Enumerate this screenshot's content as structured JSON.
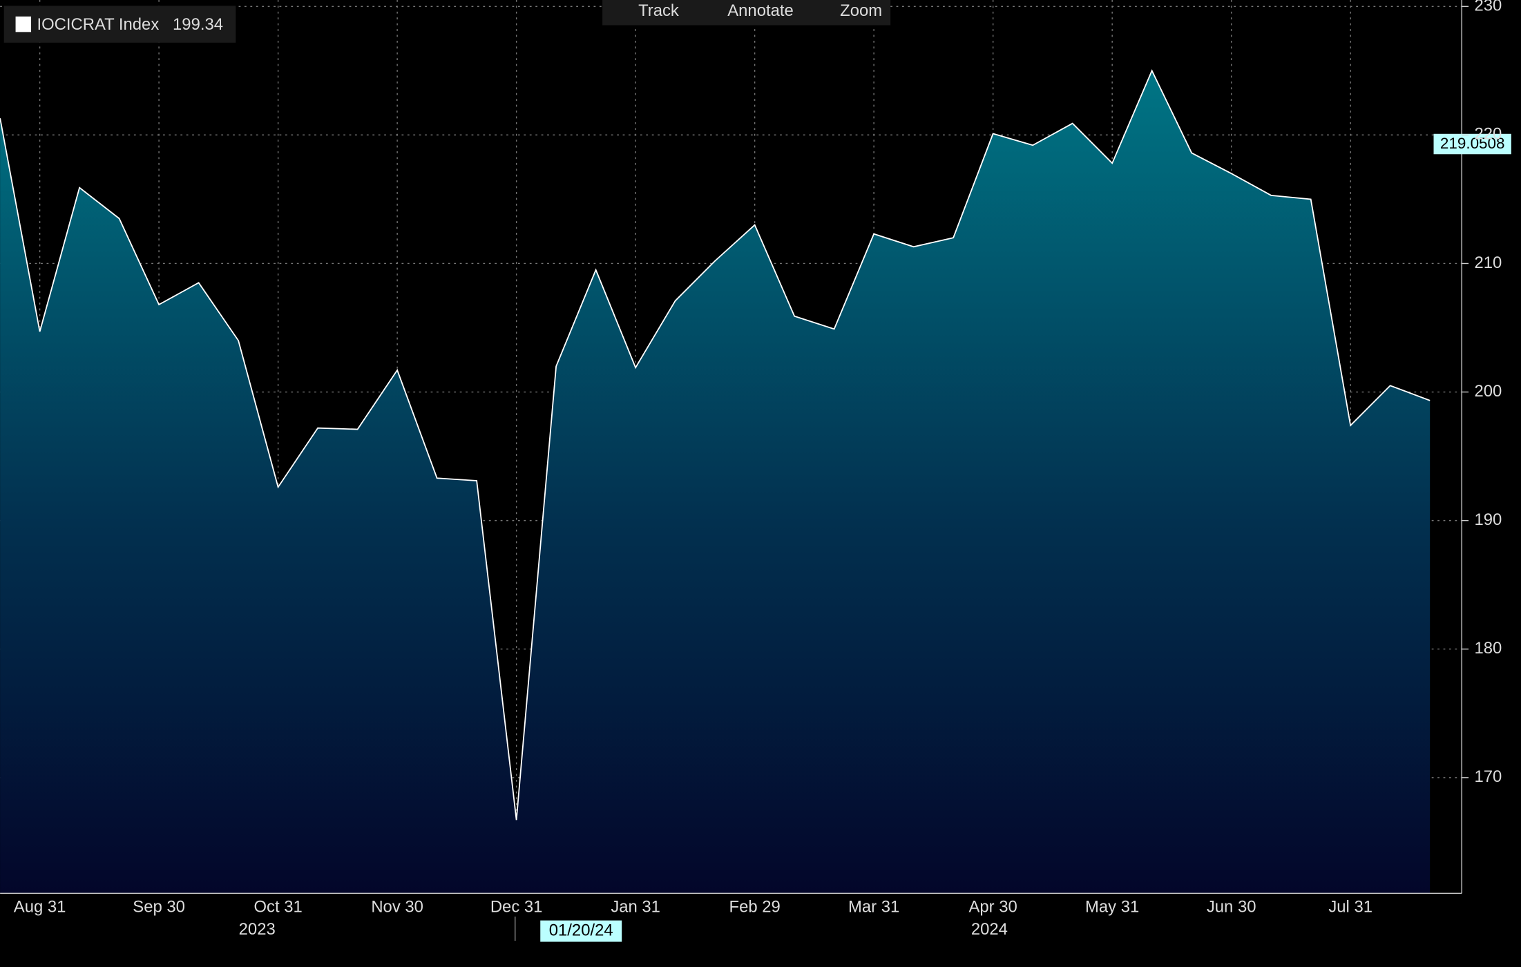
{
  "toolbar": [
    "Track",
    "Annotate",
    "Zoom"
  ],
  "chart_data": {
    "type": "area",
    "legend_name": "IOCICRAT Index",
    "last_value": 199.34,
    "crosshair_value": 219.0508,
    "cursor_date": "01/20/24",
    "years": [
      "2023",
      "2024"
    ],
    "categories": [
      null,
      "Aug 31",
      null,
      null,
      "Sep 30",
      null,
      null,
      "Oct 31",
      null,
      null,
      "Nov 30",
      null,
      null,
      "Dec 31",
      null,
      null,
      "Jan 31",
      null,
      null,
      "Feb 29",
      null,
      null,
      "Mar 31",
      null,
      null,
      "Apr 30",
      null,
      null,
      "May 31",
      null,
      null,
      "Jun 30",
      null,
      null,
      "Jul 31",
      null,
      null
    ],
    "series": [
      {
        "name": "IOCICRAT Index",
        "color": "#ffffff",
        "values": [
          221.3,
          204.7,
          215.9,
          213.5,
          206.8,
          208.5,
          204.0,
          192.6,
          197.2,
          197.1,
          201.7,
          193.3,
          193.1,
          166.7,
          202.0,
          209.5,
          201.9,
          207.1,
          210.2,
          213.0,
          205.9,
          204.9,
          212.3,
          211.3,
          212.0,
          220.1,
          219.2,
          220.9,
          217.8,
          225.0,
          218.6,
          217.0,
          215.3,
          215.0,
          197.4,
          200.5,
          199.34
        ]
      }
    ],
    "ylim": [
      161,
      230.5
    ],
    "yticks": [
      170,
      180,
      190,
      200,
      210,
      220,
      230
    ],
    "grid": true
  }
}
